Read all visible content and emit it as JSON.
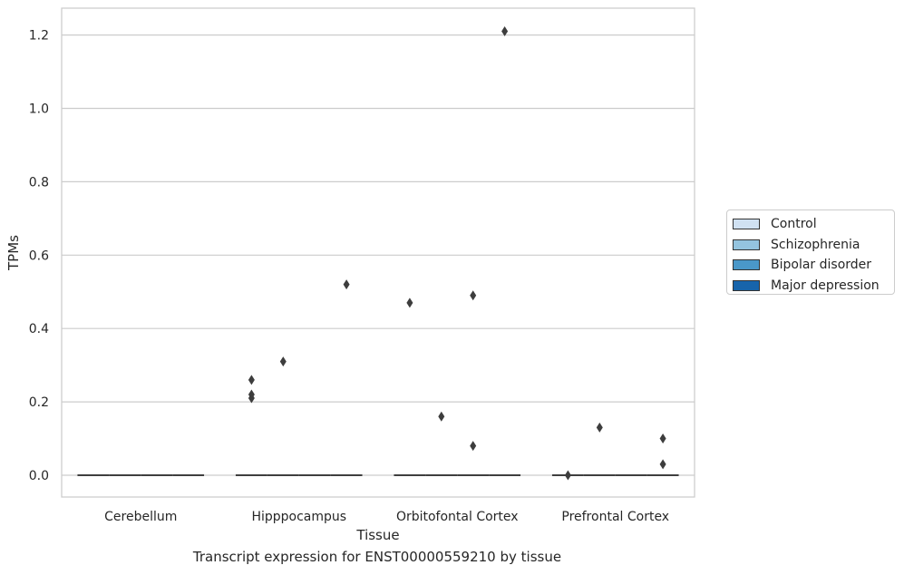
{
  "chart_data": {
    "type": "box",
    "title": "",
    "caption": "Transcript expression for ENST00000559210 by tissue",
    "xlabel": "Tissue",
    "ylabel": "TPMs",
    "ylim": [
      -0.06,
      1.27
    ],
    "yticks": [
      0.0,
      0.2,
      0.4,
      0.6,
      0.8,
      1.0,
      1.2
    ],
    "ytick_labels": [
      "0.0",
      "0.2",
      "0.4",
      "0.6",
      "0.8",
      "1.0",
      "1.2"
    ],
    "grid": "horizontal",
    "legend_position": "right",
    "categories": [
      "Cerebellum",
      "Hipppocampus",
      "Orbitofontal Cortex",
      "Prefrontal Cortex"
    ],
    "series": [
      {
        "name": "Control",
        "color": "#d0e1f2",
        "median": [
          0,
          0,
          0,
          0
        ],
        "outliers": [
          [],
          [
            0.21,
            0.22,
            0.26
          ],
          [
            0.47
          ],
          [
            0.0
          ]
        ]
      },
      {
        "name": "Schizophrenia",
        "color": "#94c4df",
        "median": [
          0,
          0,
          0,
          0
        ],
        "outliers": [
          [],
          [
            0.31
          ],
          [
            0.16
          ],
          [
            0.13
          ]
        ]
      },
      {
        "name": "Bipolar disorder",
        "color": "#4a98c9",
        "median": [
          0,
          0,
          0,
          0
        ],
        "outliers": [
          [],
          [],
          [
            0.08,
            0.49
          ],
          []
        ]
      },
      {
        "name": "Major depression",
        "color": "#1764ab",
        "median": [
          0,
          0,
          0,
          0
        ],
        "outliers": [
          [],
          [
            0.52
          ],
          [
            1.21
          ],
          [
            0.03,
            0.1
          ]
        ]
      }
    ]
  }
}
